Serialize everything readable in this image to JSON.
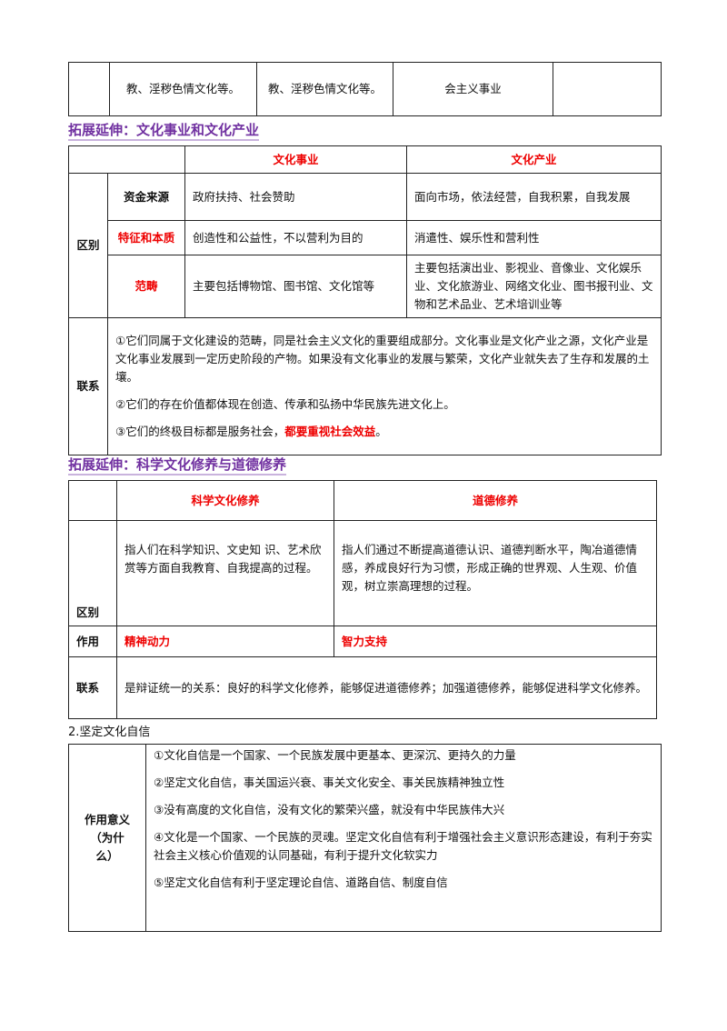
{
  "top_table": {
    "cells": [
      "教、淫秽色情文化等。",
      "教、淫秽色情文化等。",
      "会主义事业"
    ]
  },
  "section1": {
    "heading": "拓展延伸：文化事业和文化产业",
    "headers": [
      "文化事业",
      "文化产业"
    ],
    "group_label": "区别",
    "rows": [
      {
        "label": "资金来源",
        "a": "政府扶持、社会赞助",
        "b": "面向市场，依法经营，自我积累，自我发展"
      },
      {
        "label": "特征和本质",
        "a": "创造性和公益性，不以营利为目的",
        "b": "消遣性、娱乐性和营利性"
      },
      {
        "label": "范畴",
        "a": "主要包括博物馆、图书馆、文化馆等",
        "b": "主要包括演出业、影视业、音像业、文化娱乐业、文化旅游业、网络文化业、图书报刊业、文物和艺术品业、艺术培训业等"
      }
    ],
    "link_label": "联系",
    "link": [
      "①它们同属于文化建设的范畴，同是社会主义文化的重要组成部分。文化事业是文化产业之源，文化产业是文化事业发展到一定历史阶段的产物。如果没有文化事业的发展与繁荣，文化产业就失去了生存和发展的土壤。",
      "②它们的存在价值都体现在创造、传承和弘扬中华民族先进文化上。",
      "③它们的终极目标都是服务社会，"
    ],
    "link_emphasis": "都要重视社会效益",
    "link_end": "。"
  },
  "section2": {
    "heading": "拓展延伸：科学文化修养与道德修养",
    "headers": [
      "科学文化修养",
      "道德修养"
    ],
    "rows": [
      {
        "label": "区别",
        "a": "指人们在科学知识、文史知 识、艺术欣赏等方面自我教育、自我提高的过程。",
        "b": "指人们通过不断提高道德认识、道德判断水平，陶冶道德情感，养成良好行为习惯，形成正确的世界观、人生观、价值观，树立崇高理想的过程。"
      },
      {
        "label": "作用",
        "a": "精神动力",
        "b": "智力支持"
      }
    ],
    "link_label": "联系",
    "link": "是辩证统一的关系：良好的科学文化修养，能够促进道德修养；加强道德修养，能够促进科学文化修养。"
  },
  "section3": {
    "heading": "2.坚定文化自信",
    "label": "作用意义（为什么）",
    "items": [
      "①文化自信是一个国家、一个民族发展中更基本、更深沉、更持久的力量",
      "②坚定文化自信，事关国运兴衰、事关文化安全、事关民族精神独立性",
      "③没有高度的文化自信，没有文化的繁荣兴盛，就没有中华民族伟大兴",
      "④文化是一个国家、一个民族的灵魂。坚定文化自信有利于增强社会主义意识形态建设，有利于夯实社会主义核心价值观的认同基础，有利于提升文化软实力",
      "⑤坚定文化自信有利于坚定理论自信、道路自信、制度自信"
    ]
  }
}
